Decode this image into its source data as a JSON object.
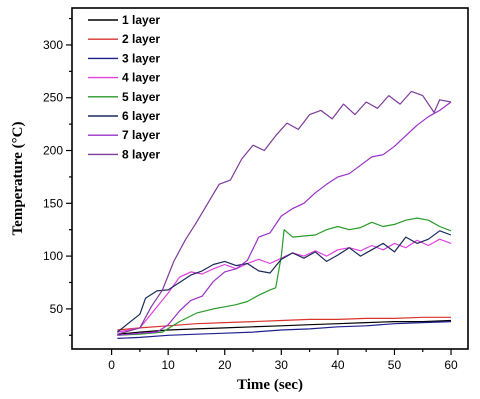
{
  "chart_data": {
    "type": "line",
    "title": "",
    "xlabel": "Time (sec)",
    "ylabel": "Temperature (°C)",
    "xlim": [
      -7,
      63
    ],
    "ylim": [
      12,
      335
    ],
    "x_ticks": [
      0,
      10,
      20,
      30,
      40,
      50,
      60
    ],
    "y_ticks": [
      50,
      100,
      150,
      200,
      250,
      300
    ],
    "grid": false,
    "legend_position": "top-left",
    "series": [
      {
        "name": "1 layer",
        "color": "#000000",
        "points": [
          [
            1,
            26
          ],
          [
            5,
            28
          ],
          [
            10,
            30
          ],
          [
            15,
            31
          ],
          [
            20,
            32
          ],
          [
            25,
            33
          ],
          [
            30,
            34
          ],
          [
            35,
            35
          ],
          [
            40,
            36
          ],
          [
            45,
            37
          ],
          [
            50,
            38
          ],
          [
            55,
            38
          ],
          [
            60,
            39
          ]
        ]
      },
      {
        "name": "2 layer",
        "color": "#d9342b",
        "points": [
          [
            1,
            30
          ],
          [
            5,
            32
          ],
          [
            10,
            34
          ],
          [
            15,
            36
          ],
          [
            20,
            37
          ],
          [
            25,
            38
          ],
          [
            30,
            39
          ],
          [
            35,
            40
          ],
          [
            40,
            40
          ],
          [
            45,
            41
          ],
          [
            50,
            41
          ],
          [
            55,
            42
          ],
          [
            60,
            42
          ]
        ]
      },
      {
        "name": "3 layer",
        "color": "#1f1f8f",
        "points": [
          [
            1,
            22
          ],
          [
            5,
            23
          ],
          [
            10,
            25
          ],
          [
            15,
            26
          ],
          [
            20,
            27
          ],
          [
            25,
            28
          ],
          [
            30,
            30
          ],
          [
            35,
            31
          ],
          [
            40,
            33
          ],
          [
            45,
            34
          ],
          [
            50,
            36
          ],
          [
            55,
            37
          ],
          [
            60,
            38
          ]
        ]
      },
      {
        "name": "4 layer",
        "color": "#e040e0",
        "points": [
          [
            1,
            28
          ],
          [
            5,
            32
          ],
          [
            10,
            65
          ],
          [
            12,
            80
          ],
          [
            14,
            85
          ],
          [
            16,
            83
          ],
          [
            18,
            88
          ],
          [
            20,
            92
          ],
          [
            22,
            88
          ],
          [
            24,
            93
          ],
          [
            26,
            97
          ],
          [
            28,
            93
          ],
          [
            30,
            98
          ],
          [
            32,
            103
          ],
          [
            34,
            100
          ],
          [
            36,
            105
          ],
          [
            38,
            100
          ],
          [
            40,
            106
          ],
          [
            42,
            108
          ],
          [
            44,
            105
          ],
          [
            46,
            110
          ],
          [
            48,
            106
          ],
          [
            50,
            112
          ],
          [
            52,
            108
          ],
          [
            54,
            115
          ],
          [
            56,
            110
          ],
          [
            58,
            116
          ],
          [
            60,
            112
          ]
        ]
      },
      {
        "name": "5 layer",
        "color": "#2a9a2a",
        "points": [
          [
            1,
            25
          ],
          [
            5,
            26
          ],
          [
            9,
            28
          ],
          [
            12,
            38
          ],
          [
            15,
            46
          ],
          [
            18,
            50
          ],
          [
            20,
            52
          ],
          [
            22,
            54
          ],
          [
            24,
            57
          ],
          [
            26,
            63
          ],
          [
            28,
            68
          ],
          [
            29,
            70
          ],
          [
            30,
            100
          ],
          [
            30.5,
            125
          ],
          [
            32,
            118
          ],
          [
            34,
            119
          ],
          [
            36,
            120
          ],
          [
            38,
            125
          ],
          [
            40,
            128
          ],
          [
            42,
            125
          ],
          [
            44,
            127
          ],
          [
            46,
            132
          ],
          [
            48,
            128
          ],
          [
            50,
            130
          ],
          [
            52,
            134
          ],
          [
            54,
            136
          ],
          [
            56,
            134
          ],
          [
            58,
            128
          ],
          [
            60,
            124
          ]
        ]
      },
      {
        "name": "6 layer",
        "color": "#1a2a5a",
        "points": [
          [
            1,
            28
          ],
          [
            5,
            45
          ],
          [
            6,
            60
          ],
          [
            8,
            67
          ],
          [
            10,
            68
          ],
          [
            12,
            75
          ],
          [
            14,
            82
          ],
          [
            16,
            86
          ],
          [
            18,
            92
          ],
          [
            20,
            95
          ],
          [
            22,
            91
          ],
          [
            24,
            93
          ],
          [
            26,
            86
          ],
          [
            28,
            84
          ],
          [
            30,
            97
          ],
          [
            32,
            103
          ],
          [
            34,
            98
          ],
          [
            36,
            104
          ],
          [
            38,
            95
          ],
          [
            40,
            101
          ],
          [
            42,
            108
          ],
          [
            44,
            100
          ],
          [
            46,
            106
          ],
          [
            48,
            112
          ],
          [
            50,
            104
          ],
          [
            52,
            118
          ],
          [
            54,
            112
          ],
          [
            56,
            116
          ],
          [
            58,
            124
          ],
          [
            60,
            120
          ]
        ]
      },
      {
        "name": "7 layer",
        "color": "#9b30c8",
        "points": [
          [
            1,
            25
          ],
          [
            5,
            27
          ],
          [
            8,
            28
          ],
          [
            10,
            35
          ],
          [
            12,
            48
          ],
          [
            14,
            58
          ],
          [
            16,
            62
          ],
          [
            18,
            76
          ],
          [
            20,
            85
          ],
          [
            22,
            88
          ],
          [
            24,
            96
          ],
          [
            26,
            118
          ],
          [
            28,
            122
          ],
          [
            30,
            138
          ],
          [
            32,
            145
          ],
          [
            34,
            150
          ],
          [
            36,
            160
          ],
          [
            38,
            168
          ],
          [
            40,
            175
          ],
          [
            42,
            178
          ],
          [
            44,
            186
          ],
          [
            46,
            194
          ],
          [
            48,
            196
          ],
          [
            50,
            204
          ],
          [
            52,
            214
          ],
          [
            54,
            224
          ],
          [
            56,
            232
          ],
          [
            58,
            238
          ],
          [
            60,
            246
          ]
        ]
      },
      {
        "name": "8 layer",
        "color": "#7d3b9a",
        "points": [
          [
            1,
            26
          ],
          [
            5,
            32
          ],
          [
            7,
            52
          ],
          [
            9,
            68
          ],
          [
            11,
            95
          ],
          [
            13,
            115
          ],
          [
            15,
            132
          ],
          [
            17,
            150
          ],
          [
            19,
            168
          ],
          [
            21,
            172
          ],
          [
            23,
            192
          ],
          [
            25,
            205
          ],
          [
            27,
            200
          ],
          [
            29,
            214
          ],
          [
            31,
            226
          ],
          [
            33,
            220
          ],
          [
            35,
            234
          ],
          [
            37,
            238
          ],
          [
            39,
            230
          ],
          [
            41,
            244
          ],
          [
            43,
            234
          ],
          [
            45,
            246
          ],
          [
            47,
            240
          ],
          [
            49,
            252
          ],
          [
            51,
            244
          ],
          [
            53,
            256
          ],
          [
            55,
            252
          ],
          [
            56,
            244
          ],
          [
            57,
            236
          ],
          [
            58,
            248
          ],
          [
            60,
            246
          ]
        ]
      }
    ]
  }
}
